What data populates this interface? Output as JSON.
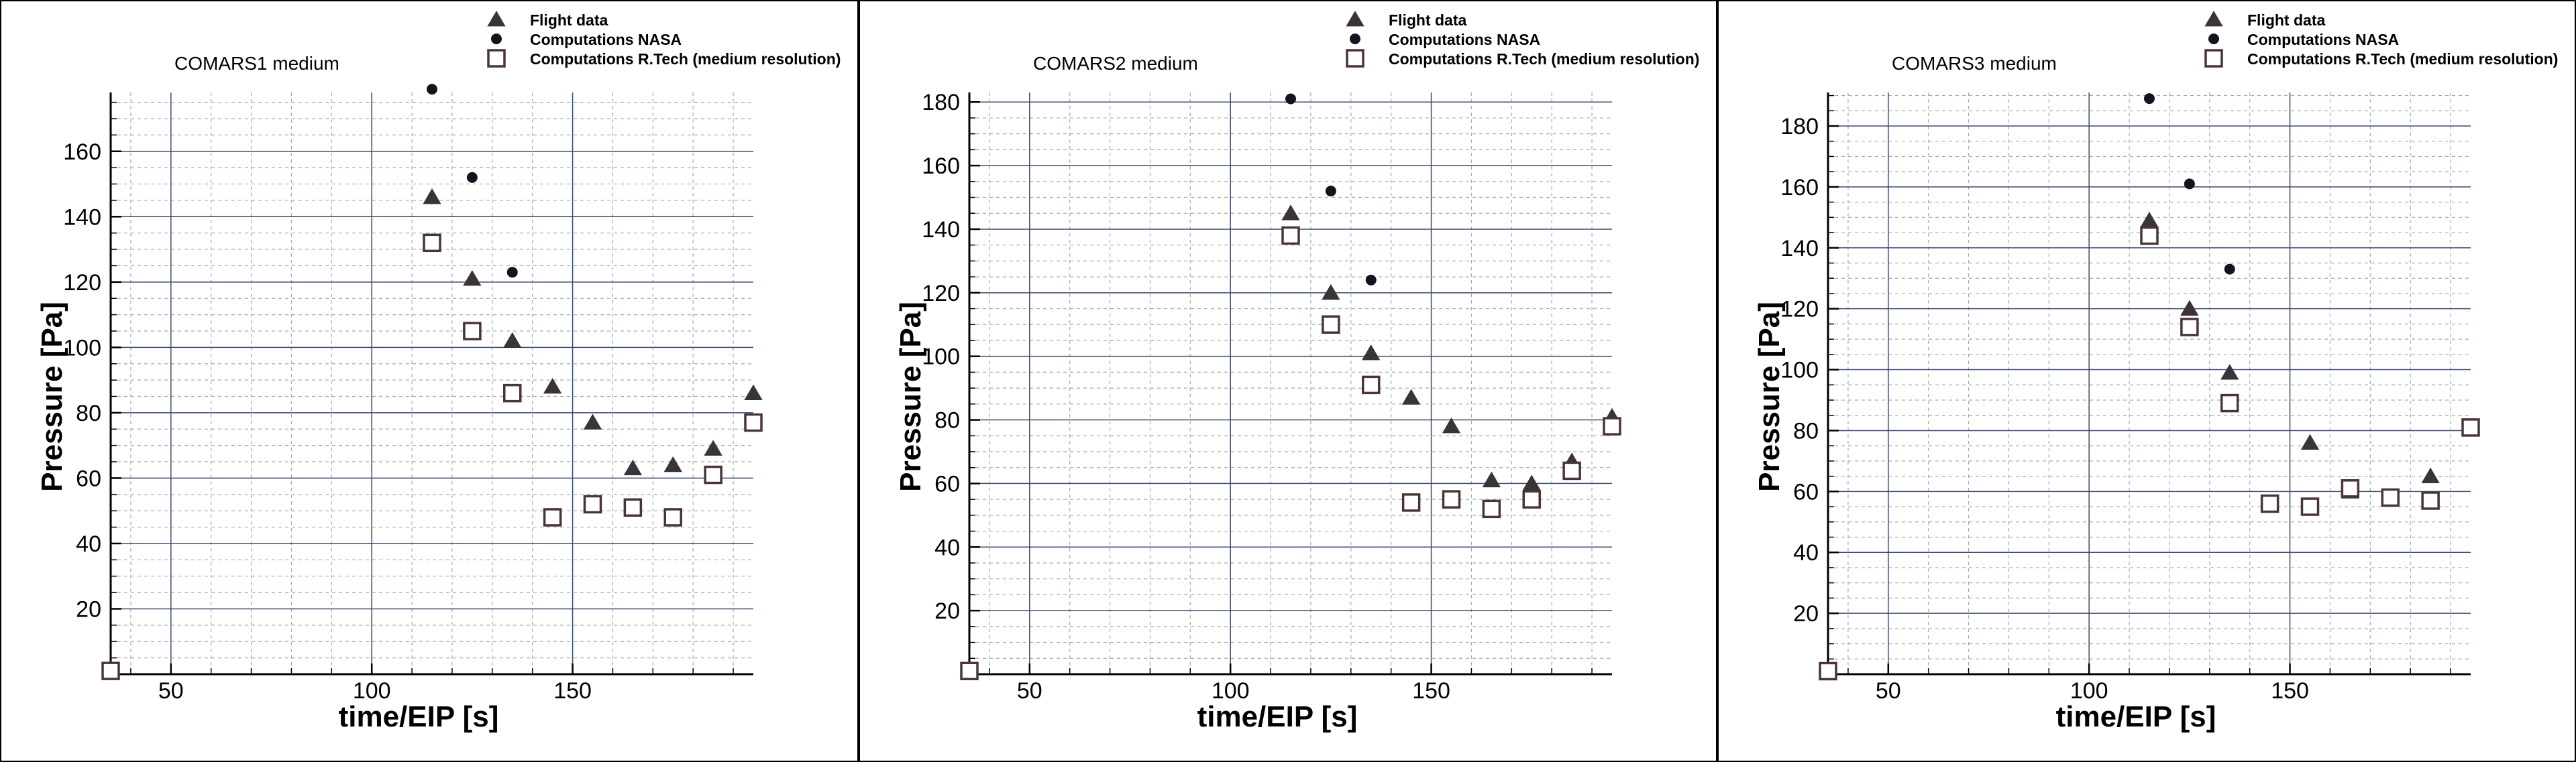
{
  "chart_data": [
    {
      "type": "scatter",
      "title": "COMARS1 medium",
      "xlabel": "time/EIP [s]",
      "ylabel": "Pressure [Pa]",
      "xlim": [
        35,
        195
      ],
      "ylim": [
        0,
        178
      ],
      "x_ticks": [
        50,
        100,
        150
      ],
      "y_ticks": [
        20,
        40,
        60,
        80,
        100,
        120,
        140,
        160
      ],
      "grid": true,
      "legend_position": "top-right",
      "series": [
        {
          "name": "Flight data",
          "marker": "triangle",
          "color": "#3a3438",
          "points": [
            [
              35,
              1
            ],
            [
              115,
              146
            ],
            [
              125,
              121
            ],
            [
              135,
              102
            ],
            [
              145,
              88
            ],
            [
              155,
              77
            ],
            [
              165,
              63
            ],
            [
              175,
              64
            ],
            [
              185,
              69
            ],
            [
              195,
              86
            ]
          ]
        },
        {
          "name": "Computations NASA",
          "marker": "circle",
          "color": "#14141e",
          "points": [
            [
              115,
              179
            ],
            [
              125,
              152
            ],
            [
              135,
              123
            ]
          ]
        },
        {
          "name": "Computations R.Tech (medium resolution)",
          "marker": "square-open",
          "color": "#4a3438",
          "points": [
            [
              35,
              1
            ],
            [
              115,
              132
            ],
            [
              125,
              105
            ],
            [
              135,
              86
            ],
            [
              145,
              48
            ],
            [
              155,
              52
            ],
            [
              165,
              51
            ],
            [
              175,
              48
            ],
            [
              185,
              61
            ],
            [
              195,
              77
            ]
          ]
        }
      ]
    },
    {
      "type": "scatter",
      "title": "COMARS2 medium",
      "xlabel": "time/EIP [s]",
      "ylabel": "Pressure [Pa]",
      "xlim": [
        35,
        195
      ],
      "ylim": [
        0,
        183
      ],
      "x_ticks": [
        50,
        100,
        150
      ],
      "y_ticks": [
        20,
        40,
        60,
        80,
        100,
        120,
        140,
        160,
        180
      ],
      "grid": true,
      "legend_position": "top-right",
      "series": [
        {
          "name": "Flight data",
          "marker": "triangle",
          "color": "#3a3438",
          "points": [
            [
              35,
              1
            ],
            [
              115,
              145
            ],
            [
              125,
              120
            ],
            [
              135,
              101
            ],
            [
              145,
              87
            ],
            [
              155,
              78
            ],
            [
              165,
              61
            ],
            [
              175,
              60
            ],
            [
              185,
              67
            ],
            [
              195,
              81
            ]
          ]
        },
        {
          "name": "Computations NASA",
          "marker": "circle",
          "color": "#14141e",
          "points": [
            [
              115,
              181
            ],
            [
              125,
              152
            ],
            [
              135,
              124
            ]
          ]
        },
        {
          "name": "Computations R.Tech (medium resolution)",
          "marker": "square-open",
          "color": "#4a3438",
          "points": [
            [
              35,
              1
            ],
            [
              115,
              138
            ],
            [
              125,
              110
            ],
            [
              135,
              91
            ],
            [
              145,
              54
            ],
            [
              155,
              55
            ],
            [
              165,
              52
            ],
            [
              175,
              55
            ],
            [
              185,
              64
            ],
            [
              195,
              78
            ]
          ]
        }
      ]
    },
    {
      "type": "scatter",
      "title": "COMARS3 medium",
      "xlabel": "time/EIP [s]",
      "ylabel": "Pressure [Pa]",
      "xlim": [
        35,
        195
      ],
      "ylim": [
        0,
        191
      ],
      "x_ticks": [
        50,
        100,
        150
      ],
      "y_ticks": [
        20,
        40,
        60,
        80,
        100,
        120,
        140,
        160,
        180
      ],
      "grid": true,
      "legend_position": "top-right",
      "series": [
        {
          "name": "Flight data",
          "marker": "triangle",
          "color": "#3a3438",
          "points": [
            [
              35,
              1
            ],
            [
              115,
              149
            ],
            [
              125,
              120
            ],
            [
              135,
              99
            ],
            [
              155,
              76
            ],
            [
              165,
              60
            ],
            [
              175,
              58
            ],
            [
              185,
              65
            ],
            [
              195,
              81
            ]
          ]
        },
        {
          "name": "Computations NASA",
          "marker": "circle",
          "color": "#14141e",
          "points": [
            [
              115,
              189
            ],
            [
              125,
              161
            ],
            [
              135,
              133
            ]
          ]
        },
        {
          "name": "Computations R.Tech (medium resolution)",
          "marker": "square-open",
          "color": "#4a3438",
          "points": [
            [
              35,
              1
            ],
            [
              115,
              144
            ],
            [
              125,
              114
            ],
            [
              135,
              89
            ],
            [
              145,
              56
            ],
            [
              155,
              55
            ],
            [
              165,
              61
            ],
            [
              175,
              58
            ],
            [
              185,
              57
            ],
            [
              195,
              81
            ]
          ]
        }
      ]
    }
  ]
}
